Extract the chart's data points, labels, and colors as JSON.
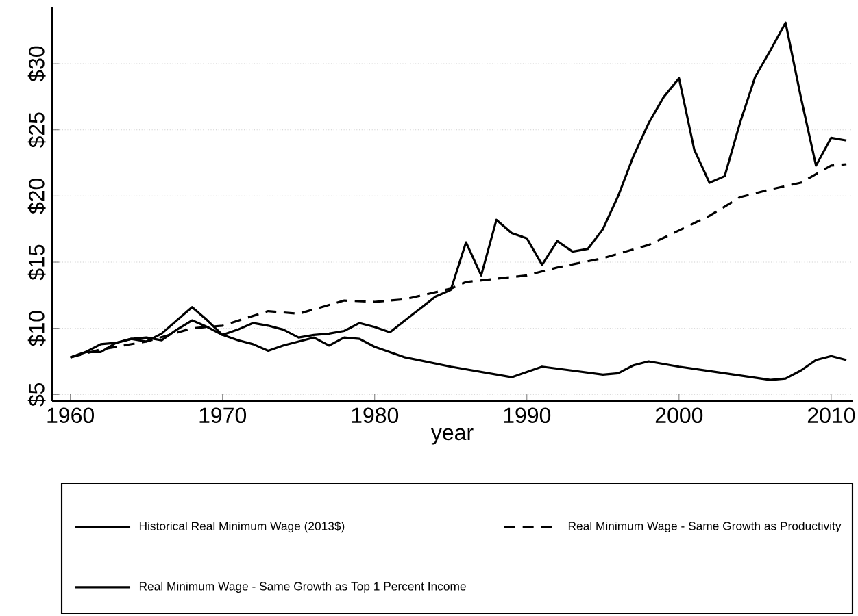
{
  "chart_data": {
    "type": "line",
    "xlabel": "year",
    "xlim": [
      1958.8,
      2011.4
    ],
    "ylim": [
      4.5,
      34.3
    ],
    "xticks": [
      1960,
      1970,
      1980,
      1990,
      2000,
      2010
    ],
    "yticks": [
      {
        "value": 5,
        "label": "$5"
      },
      {
        "value": 10,
        "label": "$10"
      },
      {
        "value": 15,
        "label": "$15"
      },
      {
        "value": 20,
        "label": "$20"
      },
      {
        "value": 25,
        "label": "$25"
      },
      {
        "value": 30,
        "label": "$30"
      }
    ],
    "grid": "y",
    "legend": "bottom",
    "line_style": "solid",
    "marker": "none",
    "series": [
      {
        "name": "Historical Real Minimum Wage (2013$)",
        "color": "#000000",
        "x": [
          1960,
          1961,
          1962,
          1963,
          1964,
          1965,
          1966,
          1967,
          1968,
          1969,
          1970,
          1971,
          1972,
          1973,
          1974,
          1975,
          1976,
          1977,
          1978,
          1979,
          1980,
          1981,
          1982,
          1985,
          1989,
          1990,
          1991,
          1993,
          1995,
          1996,
          1997,
          1998,
          2000,
          2003,
          2006,
          2007,
          2008,
          2009,
          2010,
          2011
        ],
        "values": [
          7.8,
          8.2,
          8.2,
          8.9,
          9.2,
          9.3,
          9.1,
          9.9,
          10.6,
          10.1,
          9.5,
          9.1,
          8.8,
          8.3,
          8.7,
          9.0,
          9.3,
          8.7,
          9.3,
          9.2,
          8.6,
          8.2,
          7.8,
          7.1,
          6.3,
          6.7,
          7.1,
          6.8,
          6.5,
          6.6,
          7.2,
          7.5,
          7.1,
          6.6,
          6.1,
          6.2,
          6.8,
          7.6,
          7.9,
          7.6
        ]
      },
      {
        "name": "Real Minimum Wage - Same Growth as Productivity",
        "color": "#000000",
        "line_style": "dashed",
        "x": [
          1960,
          1962,
          1965,
          1968,
          1970,
          1973,
          1975,
          1978,
          1980,
          1982,
          1985,
          1986,
          1990,
          1992,
          1995,
          1998,
          2000,
          2002,
          2004,
          2006,
          2008,
          2010,
          2011
        ],
        "values": [
          7.8,
          8.4,
          9.0,
          10.0,
          10.2,
          11.3,
          11.1,
          12.1,
          12.0,
          12.2,
          13.0,
          13.5,
          14.0,
          14.6,
          15.3,
          16.3,
          17.4,
          18.5,
          19.9,
          20.5,
          21.0,
          22.3,
          22.4
        ]
      },
      {
        "name": "Real Minimum Wage - Same Growth as Top 1 Percent Income",
        "color": "#000000",
        "x": [
          1960,
          1961,
          1962,
          1963,
          1964,
          1965,
          1966,
          1967,
          1968,
          1969,
          1970,
          1971,
          1972,
          1973,
          1974,
          1975,
          1976,
          1977,
          1978,
          1979,
          1980,
          1981,
          1982,
          1983,
          1984,
          1985,
          1986,
          1987,
          1988,
          1989,
          1990,
          1991,
          1992,
          1993,
          1994,
          1995,
          1996,
          1997,
          1998,
          1999,
          2000,
          2001,
          2002,
          2003,
          2004,
          2005,
          2006,
          2007,
          2008,
          2009,
          2010,
          2011
        ],
        "values": [
          7.8,
          8.2,
          8.8,
          8.9,
          9.2,
          9.0,
          9.6,
          10.6,
          11.6,
          10.6,
          9.5,
          9.9,
          10.4,
          10.2,
          9.9,
          9.3,
          9.5,
          9.6,
          9.8,
          10.4,
          10.1,
          9.7,
          10.6,
          11.5,
          12.4,
          12.9,
          16.5,
          14.0,
          18.2,
          17.2,
          16.8,
          14.8,
          16.6,
          15.8,
          16.0,
          17.5,
          20.0,
          23.0,
          25.5,
          27.5,
          28.9,
          23.5,
          21.0,
          21.5,
          25.5,
          29.0,
          31.0,
          33.1,
          27.5,
          22.3,
          24.4,
          24.2
        ]
      }
    ]
  }
}
